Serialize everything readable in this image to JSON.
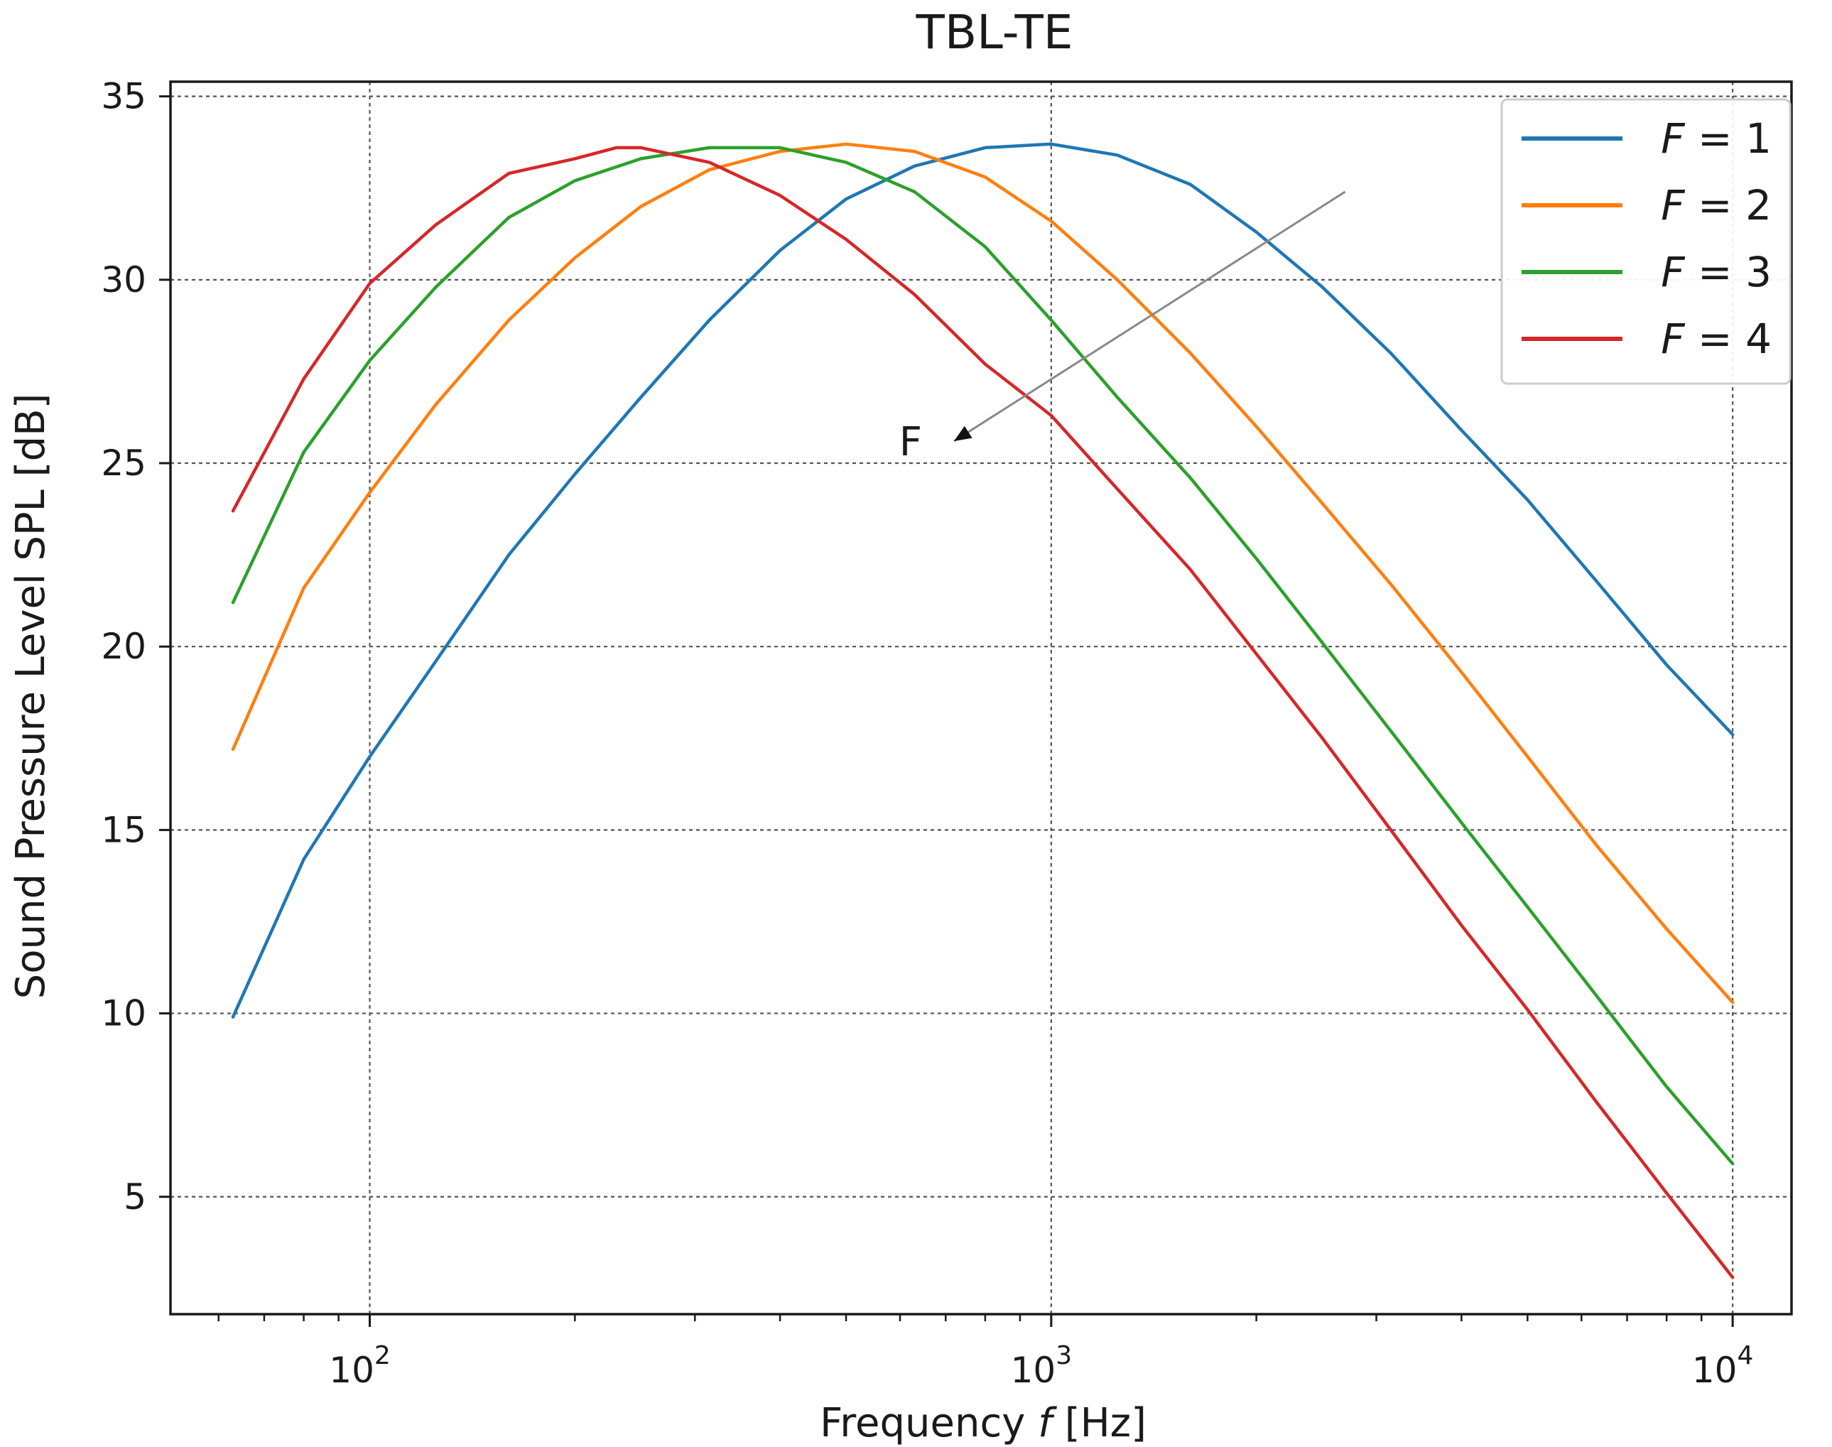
{
  "chart_data": {
    "type": "line",
    "title": "TBL-TE",
    "xlabel": "Frequency",
    "xlabel_var": "f",
    "xlabel_unit": "[Hz]",
    "ylabel": "Sound Pressure Level SPL [dB]",
    "xscale": "log",
    "xlim": [
      51,
      12200
    ],
    "ylim": [
      1.8,
      35.4
    ],
    "grid": true,
    "legend_position": "top-right",
    "x_ticks": [
      {
        "value": 100,
        "base": "10",
        "exp": "2"
      },
      {
        "value": 1000,
        "base": "10",
        "exp": "3"
      },
      {
        "value": 10000,
        "base": "10",
        "exp": "4"
      }
    ],
    "y_ticks": [
      5,
      10,
      15,
      20,
      25,
      30,
      35
    ],
    "annotation": {
      "text": "F",
      "from": [
        2700,
        32.4
      ],
      "to": [
        720,
        25.6
      ]
    },
    "series": [
      {
        "name": "F = 1",
        "var": "F",
        "rhs": "= 1",
        "color": "#1f77b4",
        "points": [
          [
            63,
            9.9
          ],
          [
            80,
            14.2
          ],
          [
            100,
            17.0
          ],
          [
            125,
            19.6
          ],
          [
            160,
            22.5
          ],
          [
            200,
            24.7
          ],
          [
            250,
            26.8
          ],
          [
            315,
            28.9
          ],
          [
            400,
            30.8
          ],
          [
            500,
            32.2
          ],
          [
            630,
            33.1
          ],
          [
            800,
            33.6
          ],
          [
            1000,
            33.7
          ],
          [
            1250,
            33.4
          ],
          [
            1600,
            32.6
          ],
          [
            2000,
            31.3
          ],
          [
            2500,
            29.8
          ],
          [
            3150,
            28.0
          ],
          [
            4000,
            25.9
          ],
          [
            5000,
            24.0
          ],
          [
            6300,
            21.8
          ],
          [
            8000,
            19.5
          ],
          [
            10000,
            17.6
          ]
        ]
      },
      {
        "name": "F = 2",
        "var": "F",
        "rhs": "= 2",
        "color": "#ff7f0e",
        "points": [
          [
            63,
            17.2
          ],
          [
            80,
            21.6
          ],
          [
            100,
            24.2
          ],
          [
            125,
            26.6
          ],
          [
            160,
            28.9
          ],
          [
            200,
            30.6
          ],
          [
            250,
            32.0
          ],
          [
            315,
            33.0
          ],
          [
            400,
            33.5
          ],
          [
            500,
            33.7
          ],
          [
            630,
            33.5
          ],
          [
            800,
            32.8
          ],
          [
            1000,
            31.6
          ],
          [
            1250,
            30.0
          ],
          [
            1600,
            28.0
          ],
          [
            2000,
            26.0
          ],
          [
            2500,
            23.9
          ],
          [
            3150,
            21.7
          ],
          [
            4000,
            19.3
          ],
          [
            5000,
            17.0
          ],
          [
            6300,
            14.6
          ],
          [
            8000,
            12.3
          ],
          [
            10000,
            10.3
          ]
        ]
      },
      {
        "name": "F = 3",
        "var": "F",
        "rhs": "= 3",
        "color": "#2ca02c",
        "points": [
          [
            63,
            21.2
          ],
          [
            80,
            25.3
          ],
          [
            100,
            27.8
          ],
          [
            125,
            29.8
          ],
          [
            160,
            31.7
          ],
          [
            200,
            32.7
          ],
          [
            250,
            33.3
          ],
          [
            315,
            33.6
          ],
          [
            400,
            33.6
          ],
          [
            500,
            33.2
          ],
          [
            630,
            32.4
          ],
          [
            800,
            30.9
          ],
          [
            1000,
            28.9
          ],
          [
            1250,
            26.8
          ],
          [
            1600,
            24.6
          ],
          [
            2000,
            22.4
          ],
          [
            2500,
            20.1
          ],
          [
            3150,
            17.7
          ],
          [
            4000,
            15.2
          ],
          [
            5000,
            12.9
          ],
          [
            6300,
            10.5
          ],
          [
            8000,
            8.0
          ],
          [
            10000,
            5.9
          ]
        ]
      },
      {
        "name": "F = 4",
        "var": "F",
        "rhs": "= 4",
        "color": "#d62728",
        "points": [
          [
            63,
            23.7
          ],
          [
            80,
            27.3
          ],
          [
            100,
            29.9
          ],
          [
            125,
            31.5
          ],
          [
            160,
            32.9
          ],
          [
            200,
            33.3
          ],
          [
            230,
            33.6
          ],
          [
            250,
            33.6
          ],
          [
            315,
            33.2
          ],
          [
            400,
            32.3
          ],
          [
            500,
            31.1
          ],
          [
            630,
            29.6
          ],
          [
            800,
            27.7
          ],
          [
            1000,
            26.3
          ],
          [
            1250,
            24.3
          ],
          [
            1600,
            22.1
          ],
          [
            2000,
            19.8
          ],
          [
            2500,
            17.5
          ],
          [
            3150,
            15.0
          ],
          [
            4000,
            12.4
          ],
          [
            5000,
            10.1
          ],
          [
            6300,
            7.6
          ],
          [
            8000,
            5.1
          ],
          [
            10000,
            2.8
          ]
        ]
      }
    ]
  }
}
